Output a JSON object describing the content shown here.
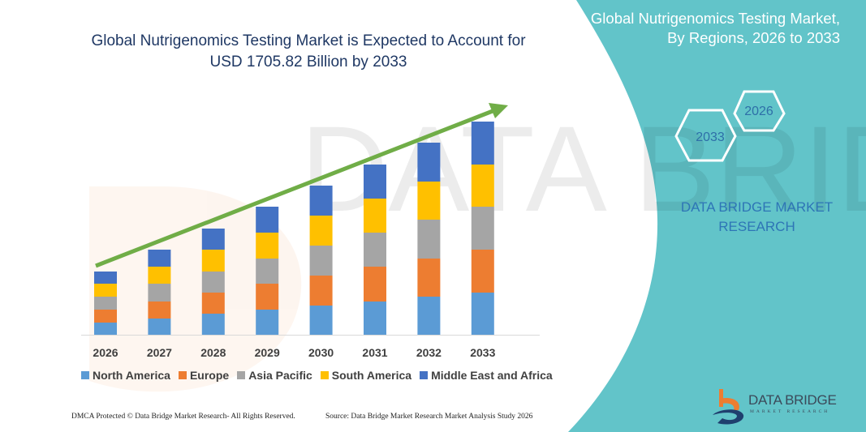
{
  "title": "Global Nutrigenomics Testing Market is Expected to Account for USD 1705.82 Billion by 2033",
  "side_panel": {
    "title": "Global Nutrigenomics Testing Market, By Regions, 2026 to 2033",
    "hex_start": "2026",
    "hex_end": "2033",
    "brand": "DATA BRIDGE MARKET RESEARCH",
    "logo_text": "DATA BRIDGE",
    "logo_sub": "MARKET RESEARCH",
    "background_color": "#62C4C9"
  },
  "footer": {
    "left": "DMCA Protected © Data Bridge Market Research-  All Rights Reserved.",
    "right": "Source: Data Bridge Market Research  Market Analysis Study 2026"
  },
  "chart_data": {
    "type": "bar",
    "stacked": true,
    "title": "Global Nutrigenomics Testing Market is Expected to Account for USD 1705.82 Billion by 2033",
    "xlabel": "",
    "ylabel": "",
    "ylim": [
      0,
      270
    ],
    "y_axis_shown": false,
    "grid": false,
    "legend_position": "bottom",
    "trend_arrow": true,
    "trend_color": "#70AD47",
    "categories": [
      "2026",
      "2027",
      "2028",
      "2029",
      "2030",
      "2031",
      "2032",
      "2033"
    ],
    "series": [
      {
        "name": "North America",
        "color": "#5B9BD5",
        "values": [
          15,
          20,
          26,
          31,
          36,
          41,
          47,
          52
        ]
      },
      {
        "name": "Europe",
        "color": "#ED7D31",
        "values": [
          16,
          21,
          26,
          32,
          37,
          43,
          47,
          53
        ]
      },
      {
        "name": "Asia Pacific",
        "color": "#A5A5A5",
        "values": [
          16,
          22,
          26,
          31,
          37,
          42,
          48,
          53
        ]
      },
      {
        "name": "South America",
        "color": "#FFC000",
        "values": [
          16,
          21,
          27,
          32,
          37,
          42,
          47,
          52
        ]
      },
      {
        "name": "Middle East and Africa",
        "color": "#4472C4",
        "values": [
          15,
          21,
          26,
          32,
          37,
          42,
          48,
          53
        ]
      }
    ]
  }
}
